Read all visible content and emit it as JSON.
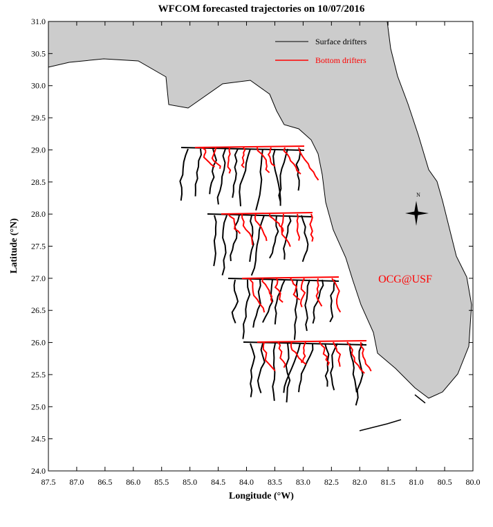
{
  "chart_data": {
    "type": "map",
    "title": "WFCOM forecasted trajectories on 10/07/2016",
    "xlabel": "Longitude (°W)",
    "ylabel": "Latitude (°N)",
    "xlim": [
      87.5,
      80.0
    ],
    "ylim": [
      24.0,
      31.0
    ],
    "xticks": [
      87.5,
      {
        "value": 87,
        "label": "87.0"
      },
      86.5,
      {
        "value": 86,
        "label": "86.0"
      },
      85.5,
      {
        "value": 85,
        "label": "85.0"
      },
      84.5,
      {
        "value": 84,
        "label": "84.0"
      },
      83.5,
      {
        "value": 83,
        "label": "83.0"
      },
      82.5,
      {
        "value": 82,
        "label": "82.0"
      },
      81.5,
      {
        "value": 81,
        "label": "81.0"
      },
      80.5,
      {
        "value": 80,
        "label": "80.0"
      }
    ],
    "yticks": [
      {
        "value": 24,
        "label": "24.0"
      },
      24.5,
      {
        "value": 25,
        "label": "25.0"
      },
      25.5,
      {
        "value": 26,
        "label": "26.0"
      },
      26.5,
      {
        "value": 27,
        "label": "27.0"
      },
      27.5,
      {
        "value": 28,
        "label": "28.0"
      },
      28.5,
      {
        "value": 29,
        "label": "29.0"
      },
      29.5,
      {
        "value": 30,
        "label": "30.0"
      },
      30.5,
      {
        "value": 31,
        "label": "31.0"
      }
    ],
    "series": [
      {
        "name": "Surface drifters",
        "color": "#000000"
      },
      {
        "name": "Bottom drifters",
        "color": "#ff0000"
      }
    ],
    "annotation": "OCG@USF",
    "compass": "N"
  }
}
